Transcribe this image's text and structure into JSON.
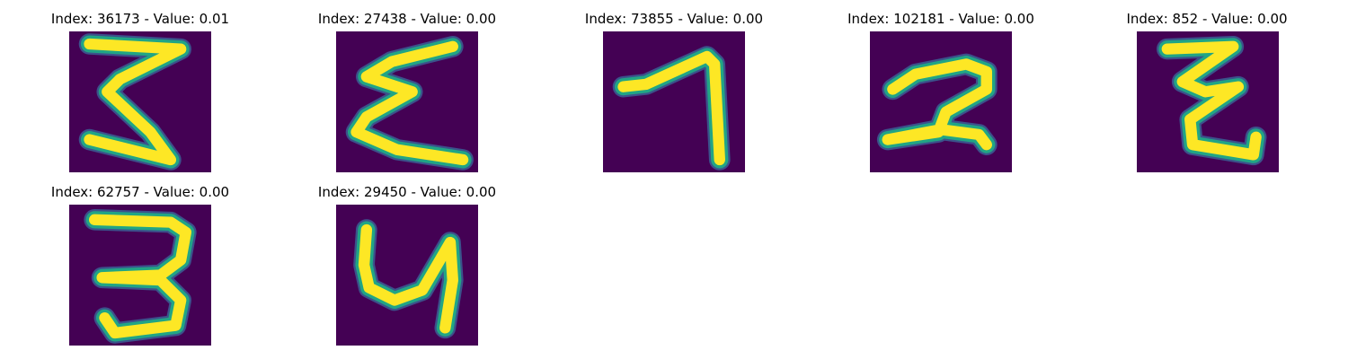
{
  "figure": {
    "panels": [
      {
        "title": "Index: 36173 - Value: 0.01",
        "glyph": "handwritten-3"
      },
      {
        "title": "Index: 27438 - Value: 0.00",
        "glyph": "handwritten-sigma"
      },
      {
        "title": "Index: 73855 - Value: 0.00",
        "glyph": "handwritten-1"
      },
      {
        "title": "Index: 102181 - Value: 0.00",
        "glyph": "handwritten-2"
      },
      {
        "title": "Index: 852 - Value: 0.00",
        "glyph": "handwritten-z"
      },
      {
        "title": "Index: 62757 - Value: 0.00",
        "glyph": "handwritten-3"
      },
      {
        "title": "Index: 29450 - Value: 0.00",
        "glyph": "handwritten-4"
      }
    ],
    "colors": {
      "background": "#440154",
      "stroke_core": "#fde725",
      "stroke_edge": "#21a585",
      "stroke_halo": "#3b528b"
    }
  }
}
